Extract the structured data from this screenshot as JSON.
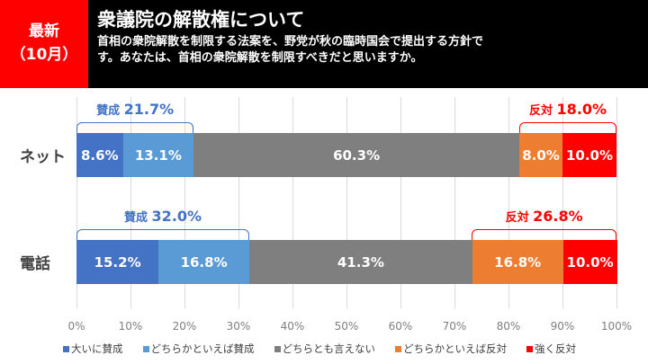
{
  "header": {
    "badge_line1": "最新",
    "badge_line2": "（10月）",
    "title": "衆議院の解散権について",
    "question": "首相の衆院解散を制限する法案を、野党が秋の臨時国会で提出する方針です。あなたは、首相の衆院解散を制限すべきだと思いますか。"
  },
  "chart_data": {
    "type": "bar",
    "stacked": true,
    "orientation": "horizontal",
    "categories": [
      "ネット",
      "電話"
    ],
    "series": [
      {
        "name": "大いに賛成",
        "color": "#4472C4",
        "values": [
          8.6,
          15.2
        ]
      },
      {
        "name": "どちらかといえば賛成",
        "color": "#5B9BD5",
        "values": [
          13.1,
          16.8
        ]
      },
      {
        "name": "どちらとも言えない",
        "color": "#7F7F7F",
        "values": [
          60.3,
          41.3
        ]
      },
      {
        "name": "どちらかといえば反対",
        "color": "#ED7D31",
        "values": [
          8.0,
          16.8
        ]
      },
      {
        "name": "強く反対",
        "color": "#FF0000",
        "values": [
          10.0,
          10.0
        ]
      }
    ],
    "xlim": [
      0,
      100
    ],
    "ticks": [
      "0%",
      "10%",
      "20%",
      "30%",
      "40%",
      "50%",
      "60%",
      "70%",
      "80%",
      "90%",
      "100%"
    ],
    "annotations": [
      {
        "row": 0,
        "label": "賛成",
        "value": "21.7%",
        "from": 0,
        "to": 21.7,
        "color": "#4472C4"
      },
      {
        "row": 0,
        "label": "反対",
        "value": "18.0%",
        "from": 82,
        "to": 100,
        "color": "#FF0000"
      },
      {
        "row": 1,
        "label": "賛成",
        "value": "32.0%",
        "from": 0,
        "to": 32.0,
        "color": "#4472C4"
      },
      {
        "row": 1,
        "label": "反対",
        "value": "26.8%",
        "from": 73.2,
        "to": 100,
        "color": "#FF0000"
      }
    ],
    "legend": "bottom"
  }
}
